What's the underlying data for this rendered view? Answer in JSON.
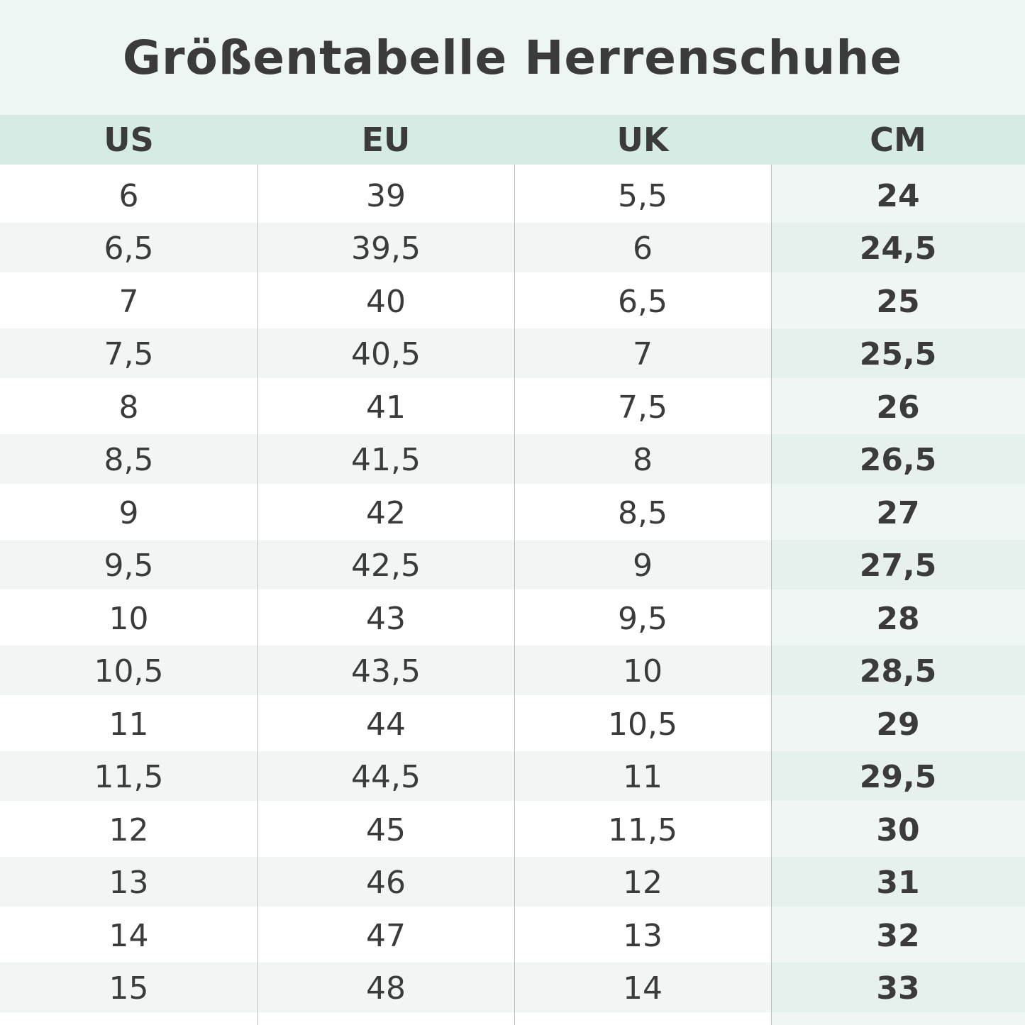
{
  "header": {
    "title": "Größentabelle Herrenschuhe"
  },
  "table": {
    "columns": [
      "US",
      "EU",
      "UK",
      "CM"
    ],
    "rows": [
      [
        "6",
        "39",
        "5,5",
        "24"
      ],
      [
        "6,5",
        "39,5",
        "6",
        "24,5"
      ],
      [
        "7",
        "40",
        "6,5",
        "25"
      ],
      [
        "7,5",
        "40,5",
        "7",
        "25,5"
      ],
      [
        "8",
        "41",
        "7,5",
        "26"
      ],
      [
        "8,5",
        "41,5",
        "8",
        "26,5"
      ],
      [
        "9",
        "42",
        "8,5",
        "27"
      ],
      [
        "9,5",
        "42,5",
        "9",
        "27,5"
      ],
      [
        "10",
        "43",
        "9,5",
        "28"
      ],
      [
        "10,5",
        "43,5",
        "10",
        "28,5"
      ],
      [
        "11",
        "44",
        "10,5",
        "29"
      ],
      [
        "11,5",
        "44,5",
        "11",
        "29,5"
      ],
      [
        "12",
        "45",
        "11,5",
        "30"
      ],
      [
        "13",
        "46",
        "12",
        "31"
      ],
      [
        "14",
        "47",
        "13",
        "32"
      ],
      [
        "15",
        "48",
        "14",
        "33"
      ]
    ]
  }
}
